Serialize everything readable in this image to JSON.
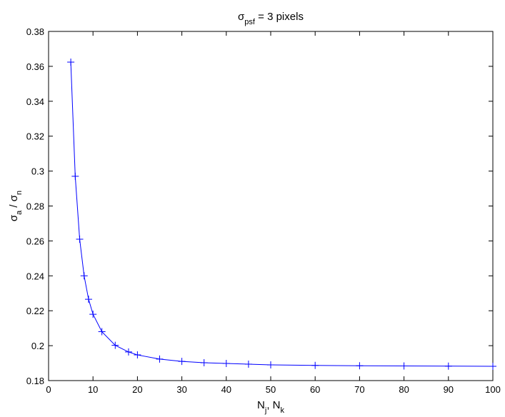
{
  "chart_data": {
    "type": "line",
    "title": [
      {
        "text": "σ"
      },
      {
        "text": "psf",
        "sub": true
      },
      {
        "text": " = 3 pixels"
      }
    ],
    "x_label": [
      {
        "text": "N"
      },
      {
        "text": "j",
        "sub": true
      },
      {
        "text": ", N"
      },
      {
        "text": "k",
        "sub": true
      }
    ],
    "y_label": [
      {
        "text": "σ"
      },
      {
        "text": "a",
        "sub": true
      },
      {
        "text": " / σ"
      },
      {
        "text": "n",
        "sub": true
      }
    ],
    "x": [
      5,
      6,
      7,
      8,
      9,
      10,
      12,
      15,
      18,
      20,
      25,
      30,
      35,
      40,
      45,
      50,
      60,
      70,
      80,
      90,
      100
    ],
    "series": [
      {
        "color": "#0000ff",
        "marker": "+",
        "values": [
          0.3624,
          0.297,
          0.261,
          0.24,
          0.2266,
          0.218,
          0.208,
          0.2002,
          0.1964,
          0.1947,
          0.1923,
          0.191,
          0.1902,
          0.1898,
          0.1894,
          0.189,
          0.1887,
          0.1885,
          0.1884,
          0.1883,
          0.1882
        ]
      }
    ],
    "xlim": [
      0,
      100
    ],
    "ylim": [
      0.18,
      0.38
    ],
    "xticks": [
      0,
      10,
      20,
      30,
      40,
      50,
      60,
      70,
      80,
      90,
      100
    ],
    "yticks": [
      0.18,
      0.2,
      0.22,
      0.24,
      0.26,
      0.28,
      0.3,
      0.32,
      0.34,
      0.36,
      0.38
    ],
    "grid": false
  }
}
